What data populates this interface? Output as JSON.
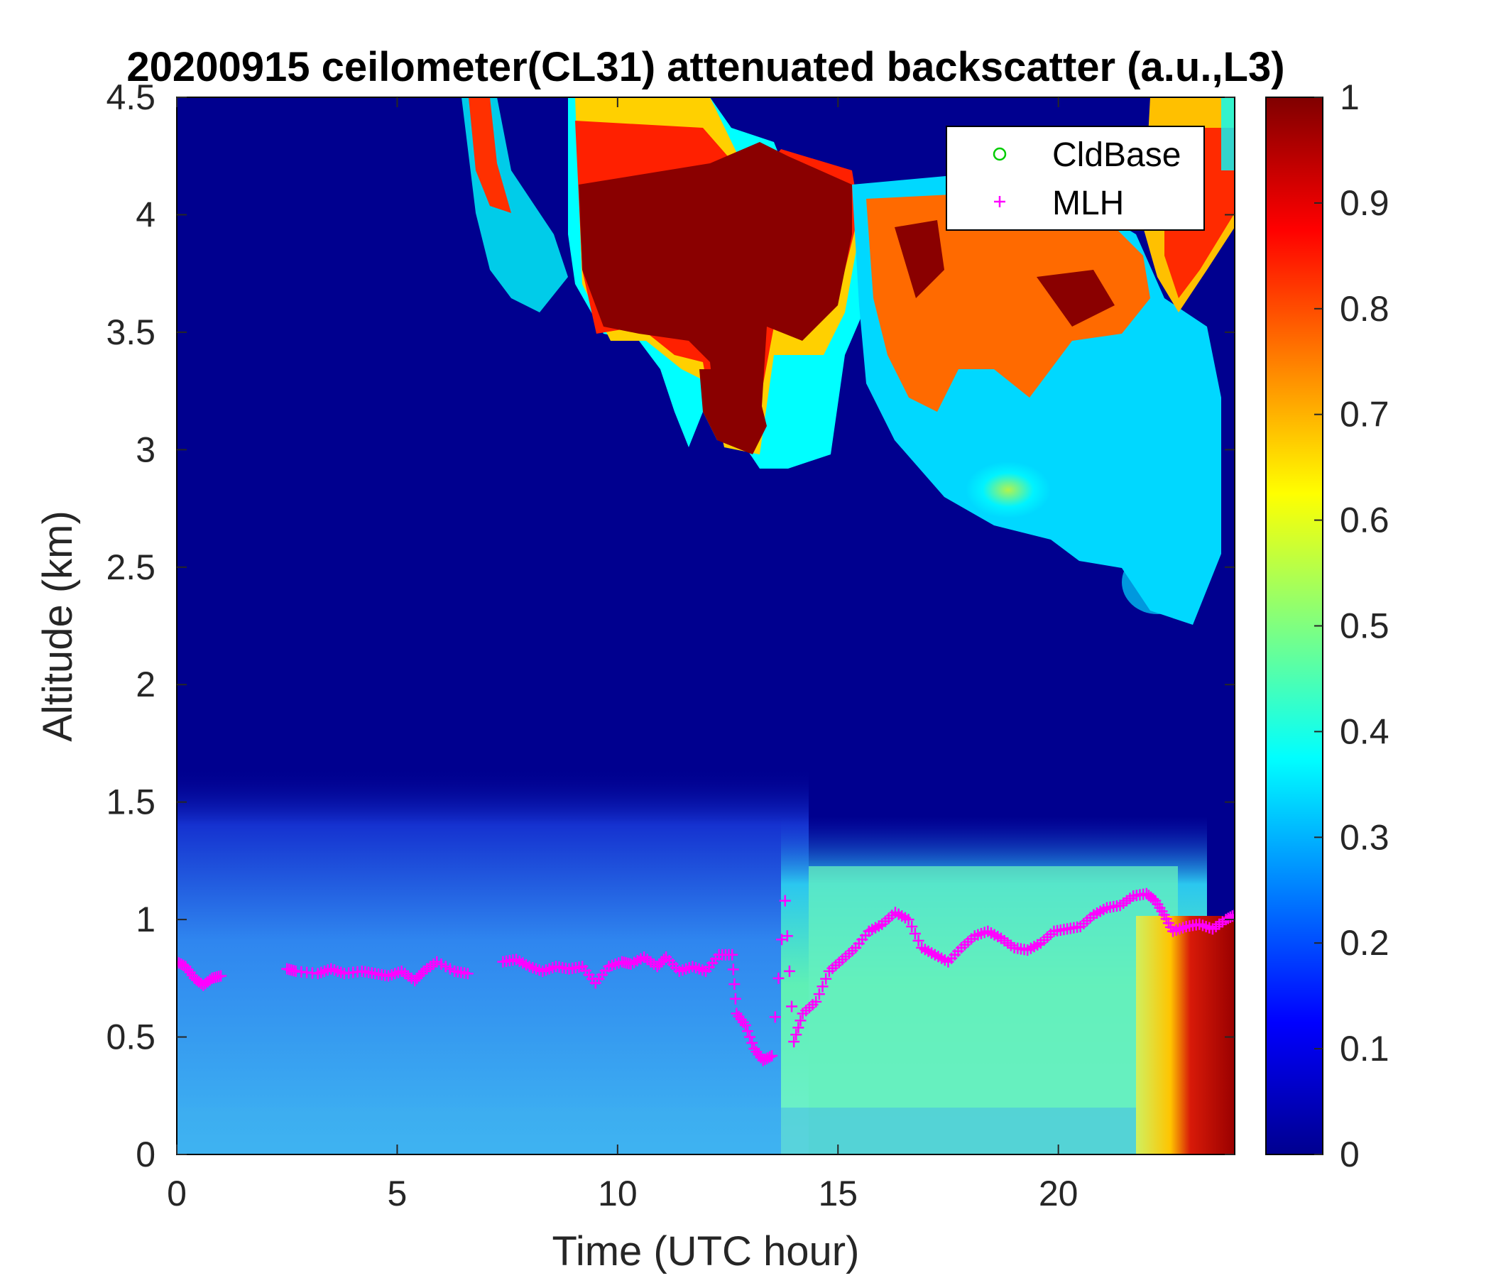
{
  "chart_data": {
    "type": "heatmap",
    "title": "20200915 ceilometer(CL31) attenuated backscatter (a.u.,L3)",
    "xlabel": "Time (UTC hour)",
    "ylabel": "Altitude (km)",
    "xlim": [
      0,
      24
    ],
    "ylim": [
      0,
      4.5
    ],
    "x_ticks": [
      "0",
      "5",
      "10",
      "15",
      "20"
    ],
    "y_ticks": [
      "0",
      "0.5",
      "1",
      "1.5",
      "2",
      "2.5",
      "3",
      "3.5",
      "4",
      "4.5"
    ],
    "colorbar": {
      "colormap": "jet",
      "range": [
        0,
        1
      ],
      "ticks": [
        "0",
        "0.1",
        "0.2",
        "0.3",
        "0.4",
        "0.5",
        "0.6",
        "0.7",
        "0.8",
        "0.9",
        "1"
      ]
    },
    "legend": {
      "placement": "top-right",
      "entries": [
        {
          "label": "CldBase",
          "marker": "circle",
          "color": "#00cc00"
        },
        {
          "label": "MLH",
          "marker": "plus",
          "color": "#ff00ff"
        }
      ]
    },
    "series": [
      {
        "name": "MLH",
        "marker": "plus",
        "color": "#ff00ff",
        "x": [
          0.0,
          0.2,
          0.4,
          0.6,
          0.8,
          1.0,
          2.5,
          2.7,
          3.2,
          3.5,
          3.8,
          4.2,
          4.5,
          4.8,
          5.1,
          5.4,
          5.6,
          5.9,
          6.3,
          6.6,
          7.4,
          7.7,
          8.0,
          8.3,
          8.6,
          8.9,
          9.2,
          9.5,
          9.8,
          10.1,
          10.3,
          10.6,
          10.9,
          11.1,
          11.4,
          11.7,
          12.0,
          12.3,
          12.6,
          12.7,
          12.9,
          13.1,
          13.3,
          13.5,
          13.8,
          14.0,
          14.2,
          14.5,
          14.8,
          15.1,
          15.4,
          15.7,
          16.0,
          16.3,
          16.6,
          16.9,
          17.2,
          17.5,
          17.8,
          18.1,
          18.4,
          18.7,
          19.0,
          19.3,
          19.6,
          19.9,
          20.2,
          20.5,
          20.8,
          21.1,
          21.4,
          21.7,
          22.0,
          22.2,
          22.4,
          22.6,
          22.9,
          23.2,
          23.5,
          23.8,
          24.0
        ],
        "y": [
          0.82,
          0.8,
          0.75,
          0.72,
          0.75,
          0.76,
          0.79,
          0.78,
          0.77,
          0.79,
          0.77,
          0.78,
          0.77,
          0.76,
          0.78,
          0.74,
          0.78,
          0.82,
          0.78,
          0.77,
          0.82,
          0.83,
          0.8,
          0.78,
          0.8,
          0.79,
          0.8,
          0.73,
          0.8,
          0.82,
          0.81,
          0.84,
          0.8,
          0.84,
          0.78,
          0.8,
          0.78,
          0.85,
          0.85,
          0.6,
          0.55,
          0.45,
          0.4,
          0.42,
          1.08,
          0.48,
          0.6,
          0.65,
          0.78,
          0.83,
          0.88,
          0.95,
          0.98,
          1.03,
          1.0,
          0.88,
          0.85,
          0.82,
          0.88,
          0.93,
          0.95,
          0.92,
          0.88,
          0.87,
          0.9,
          0.95,
          0.96,
          0.97,
          1.02,
          1.05,
          1.06,
          1.1,
          1.11,
          1.08,
          1.02,
          0.95,
          0.97,
          0.98,
          0.96,
          1.0,
          1.02
        ]
      }
    ]
  }
}
